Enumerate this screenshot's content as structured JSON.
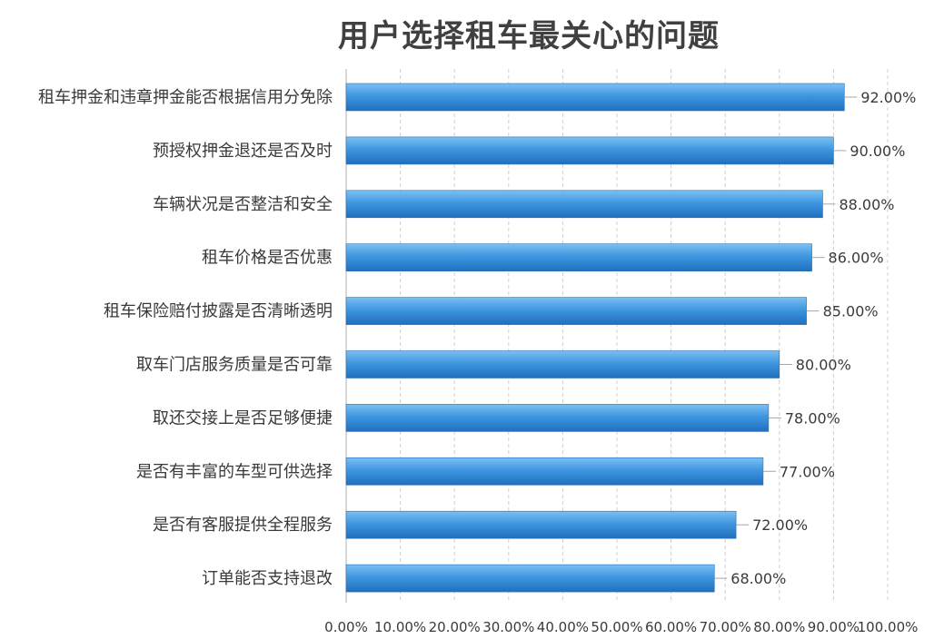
{
  "chart_data": {
    "type": "bar",
    "orientation": "horizontal",
    "title": "用户选择租车最关心的问题",
    "categories": [
      "租车押金和违章押金能否根据信用分免除",
      "预授权押金退还是否及时",
      "车辆状况是否整洁和安全",
      "租车价格是否优惠",
      "租车保险赔付披露是否清晰透明",
      "取车门店服务质量是否可靠",
      "取还交接上是否足够便捷",
      "是否有丰富的车型可供选择",
      "是否有客服提供全程服务",
      "订单能否支持退改"
    ],
    "values": [
      92,
      90,
      88,
      86,
      85,
      80,
      78,
      77,
      72,
      68
    ],
    "value_labels": [
      "92.00%",
      "90.00%",
      "88.00%",
      "86.00%",
      "85.00%",
      "80.00%",
      "78.00%",
      "77.00%",
      "72.00%",
      "68.00%"
    ],
    "xlim": [
      0,
      100
    ],
    "x_ticks": [
      0,
      10,
      20,
      30,
      40,
      50,
      60,
      70,
      80,
      90,
      100
    ],
    "x_tick_labels": [
      "0.00%",
      "10.00%",
      "20.00%",
      "30.00%",
      "40.00%",
      "50.00%",
      "60.00%",
      "70.00%",
      "80.00%",
      "90.00%",
      "100.00%"
    ],
    "grid": "vertical-dashed",
    "legend": "none",
    "colors": {
      "bar_top": "#7cc0f2",
      "bar_mid": "#3f97e0",
      "bar_bottom": "#1f6fbf",
      "grid": "#d0d0d0",
      "axis": "#bfbfbf",
      "text": "#3a3a3a",
      "title": "#404040"
    }
  }
}
